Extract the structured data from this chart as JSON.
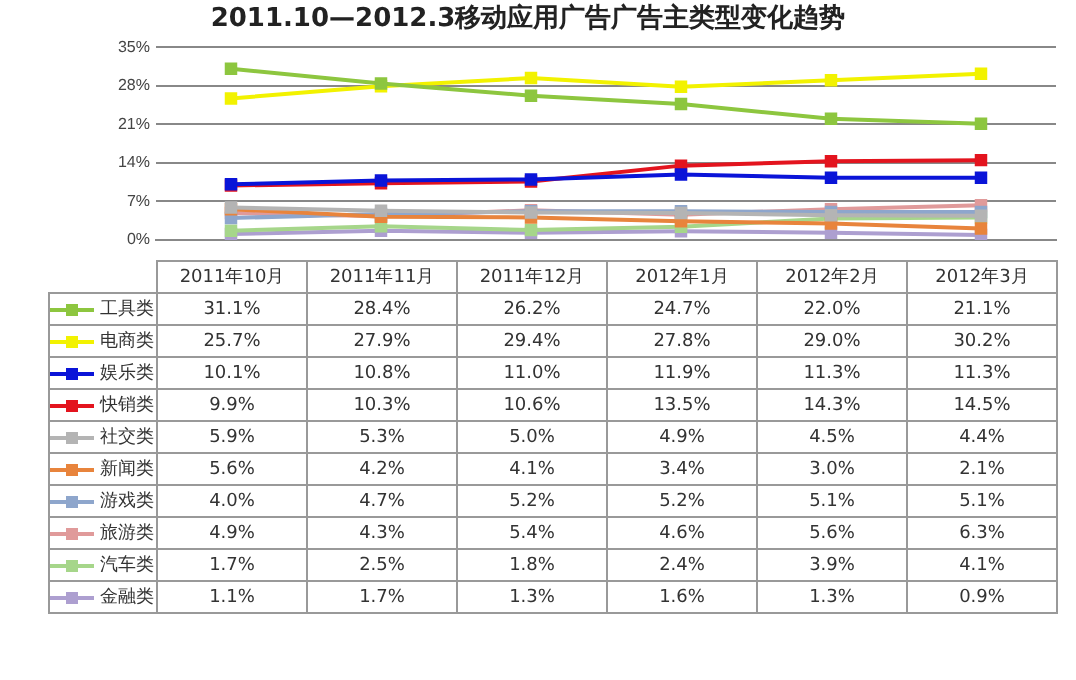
{
  "chart_data": {
    "type": "line",
    "title": "2011.10—2012.3移动应用广告广告主类型变化趋势",
    "categories": [
      "2011年10月",
      "2011年11月",
      "2011年12月",
      "2012年1月",
      "2012年2月",
      "2012年3月"
    ],
    "ylim": [
      0,
      35
    ],
    "yticks": [
      {
        "value": 0,
        "label": "0%"
      },
      {
        "value": 7,
        "label": "7%"
      },
      {
        "value": 14,
        "label": "14%"
      },
      {
        "value": 21,
        "label": "21%"
      },
      {
        "value": 28,
        "label": "28%"
      },
      {
        "value": 35,
        "label": "35%"
      }
    ],
    "grid": "y",
    "tick_labels": "y",
    "marker": "square",
    "line_style": "solid",
    "legend": "bottom left",
    "series": [
      {
        "name": "工具类",
        "color": "#8dc63f",
        "values": [
          31.1,
          28.4,
          26.2,
          24.7,
          22.0,
          21.1
        ],
        "value_labels": [
          "31.1%",
          "28.4%",
          "26.2%",
          "24.7%",
          "22.0%",
          "21.1%"
        ]
      },
      {
        "name": "电商类",
        "color": "#f2f200",
        "values": [
          25.7,
          27.9,
          29.4,
          27.8,
          29.0,
          30.2
        ],
        "value_labels": [
          "25.7%",
          "27.9%",
          "29.4%",
          "27.8%",
          "29.0%",
          "30.2%"
        ]
      },
      {
        "name": "娱乐类",
        "color": "#0a14d8",
        "values": [
          10.1,
          10.8,
          11.0,
          11.9,
          11.3,
          11.3
        ],
        "value_labels": [
          "10.1%",
          "10.8%",
          "11.0%",
          "11.9%",
          "11.3%",
          "11.3%"
        ]
      },
      {
        "name": "快销类",
        "color": "#e3141e",
        "values": [
          9.9,
          10.3,
          10.6,
          13.5,
          14.3,
          14.5
        ],
        "value_labels": [
          "9.9%",
          "10.3%",
          "10.6%",
          "13.5%",
          "14.3%",
          "14.5%"
        ]
      },
      {
        "name": "社交类",
        "color": "#b4b4b4",
        "values": [
          5.9,
          5.3,
          5.0,
          4.9,
          4.5,
          4.4
        ],
        "value_labels": [
          "5.9%",
          "5.3%",
          "5.0%",
          "4.9%",
          "4.5%",
          "4.4%"
        ]
      },
      {
        "name": "新闻类",
        "color": "#e8843c",
        "values": [
          5.6,
          4.2,
          4.1,
          3.4,
          3.0,
          2.1
        ],
        "value_labels": [
          "5.6%",
          "4.2%",
          "4.1%",
          "3.4%",
          "3.0%",
          "2.1%"
        ]
      },
      {
        "name": "游戏类",
        "color": "#8ea6cc",
        "values": [
          4.0,
          4.7,
          5.2,
          5.2,
          5.1,
          5.1
        ],
        "value_labels": [
          "4.0%",
          "4.7%",
          "5.2%",
          "5.2%",
          "5.1%",
          "5.1%"
        ]
      },
      {
        "name": "旅游类",
        "color": "#e09a9a",
        "values": [
          4.9,
          4.3,
          5.4,
          4.6,
          5.6,
          6.3
        ],
        "value_labels": [
          "4.9%",
          "4.3%",
          "5.4%",
          "4.6%",
          "5.6%",
          "6.3%"
        ]
      },
      {
        "name": "汽车类",
        "color": "#a6d68a",
        "values": [
          1.7,
          2.5,
          1.8,
          2.4,
          3.9,
          4.1
        ],
        "value_labels": [
          "1.7%",
          "2.5%",
          "1.8%",
          "2.4%",
          "3.9%",
          "4.1%"
        ]
      },
      {
        "name": "金融类",
        "color": "#ad9fd0",
        "values": [
          1.1,
          1.7,
          1.3,
          1.6,
          1.3,
          0.9
        ],
        "value_labels": [
          "1.1%",
          "1.7%",
          "1.3%",
          "1.6%",
          "1.3%",
          "0.9%"
        ]
      }
    ]
  }
}
